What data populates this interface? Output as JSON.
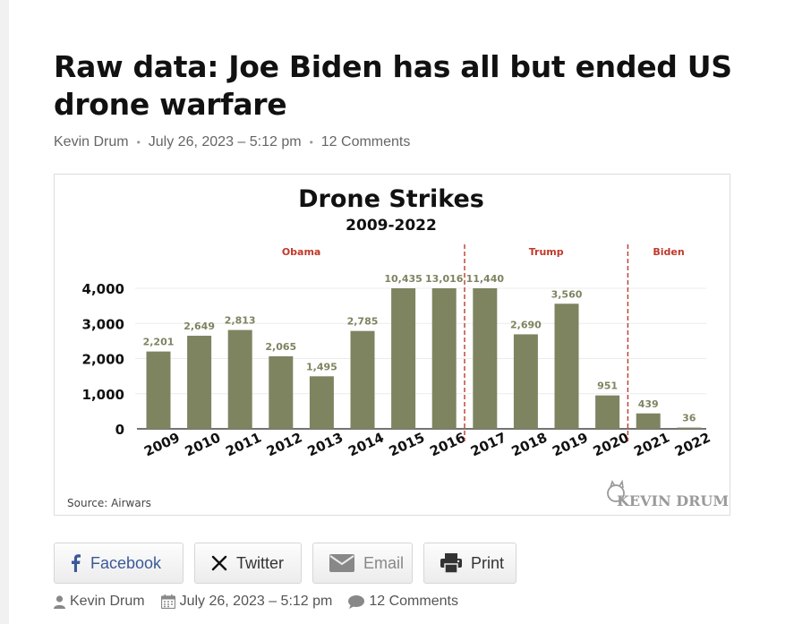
{
  "article": {
    "title": "Raw data: Joe Biden has all but ended US drone warfare",
    "author": "Kevin Drum",
    "date": "July 26, 2023 – 5:12 pm",
    "comments": "12 Comments"
  },
  "chart_data": {
    "type": "bar",
    "title": "Drone Strikes",
    "subtitle": "2009-2022",
    "categories": [
      "2009",
      "2010",
      "2011",
      "2012",
      "2013",
      "2014",
      "2015",
      "2016",
      "2017",
      "2018",
      "2019",
      "2020",
      "2021",
      "2022"
    ],
    "values": [
      2201,
      2649,
      2813,
      2065,
      1495,
      2785,
      10435,
      13016,
      11440,
      2690,
      3560,
      951,
      439,
      36
    ],
    "value_labels": [
      "2,201",
      "2,649",
      "2,813",
      "2,065",
      "1,495",
      "2,785",
      "10,435",
      "13,016",
      "11,440",
      "2,690",
      "3,560",
      "951",
      "439",
      "36"
    ],
    "ylim": [
      0,
      4000
    ],
    "yticks": [
      0,
      1000,
      2000,
      3000,
      4000
    ],
    "ytick_labels": [
      "0",
      "1,000",
      "2,000",
      "3,000",
      "4,000"
    ],
    "clipped_at": 4000,
    "grid": true,
    "eras": [
      {
        "label": "Obama",
        "start": "2009",
        "end": "2016"
      },
      {
        "label": "Trump",
        "start": "2017",
        "end": "2020"
      },
      {
        "label": "Biden",
        "start": "2021",
        "end": "2022"
      }
    ],
    "source": "Source: Airwars",
    "watermark": "KEVIN DRUM",
    "bar_color": "#7e8460",
    "label_color": "#7e8460",
    "era_color": "#c0392b"
  },
  "share": {
    "facebook": "Facebook",
    "twitter": "Twitter",
    "email": "Email",
    "print": "Print"
  },
  "colors": {
    "facebook": "#3b5998"
  }
}
